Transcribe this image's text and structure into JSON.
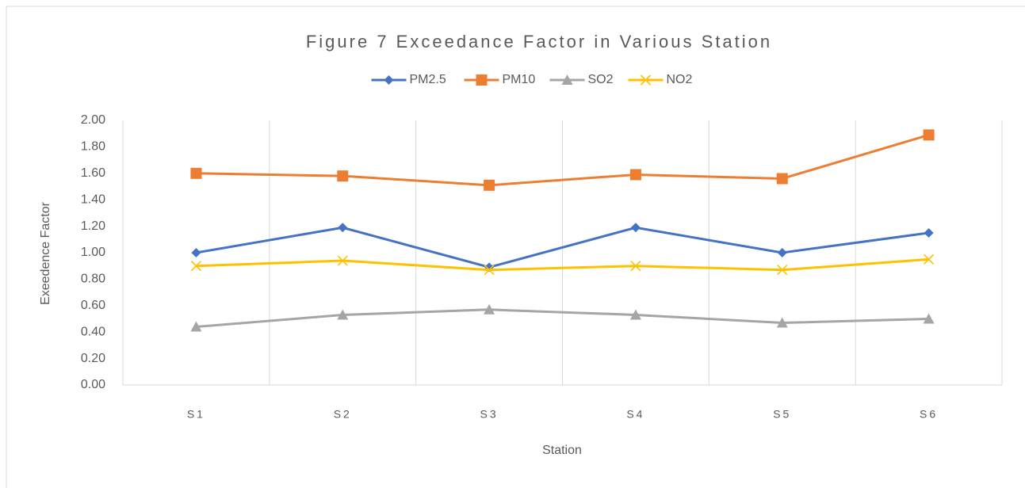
{
  "chart_data": {
    "type": "line",
    "title": "Figure 7 Exceedance Factor in Various Station",
    "x_label": "Station",
    "y_label": "Exeedence Factor",
    "categories": [
      "S1",
      "S2",
      "S3",
      "S4",
      "S5",
      "S6"
    ],
    "series": [
      {
        "name": "PM2.5",
        "color": "#4472c4",
        "marker": "diamond",
        "values": [
          1.0,
          1.19,
          0.89,
          1.19,
          1.0,
          1.15
        ]
      },
      {
        "name": "PM10",
        "color": "#ed7d31",
        "marker": "square",
        "values": [
          1.6,
          1.58,
          1.51,
          1.59,
          1.56,
          1.89
        ]
      },
      {
        "name": "SO2",
        "color": "#a5a5a5",
        "marker": "triangle",
        "values": [
          0.44,
          0.53,
          0.57,
          0.53,
          0.47,
          0.5
        ]
      },
      {
        "name": "NO2",
        "color": "#ffc000",
        "marker": "x",
        "values": [
          0.9,
          0.94,
          0.87,
          0.9,
          0.87,
          0.95
        ]
      }
    ],
    "ylim": [
      0,
      2
    ],
    "yticks": [
      {
        "value": 0,
        "label": "0.00"
      },
      {
        "value": 0.2,
        "label": "0.20"
      },
      {
        "value": 0.4,
        "label": "0.40"
      },
      {
        "value": 0.6,
        "label": "0.60"
      },
      {
        "value": 0.8,
        "label": "0.80"
      },
      {
        "value": 1,
        "label": "1.00"
      },
      {
        "value": 1.2,
        "label": "1.20"
      },
      {
        "value": 1.4,
        "label": "1.40"
      },
      {
        "value": 1.6,
        "label": "1.60"
      },
      {
        "value": 1.8,
        "label": "1.80"
      },
      {
        "value": 2,
        "label": "2.00"
      }
    ],
    "legend": "top"
  }
}
